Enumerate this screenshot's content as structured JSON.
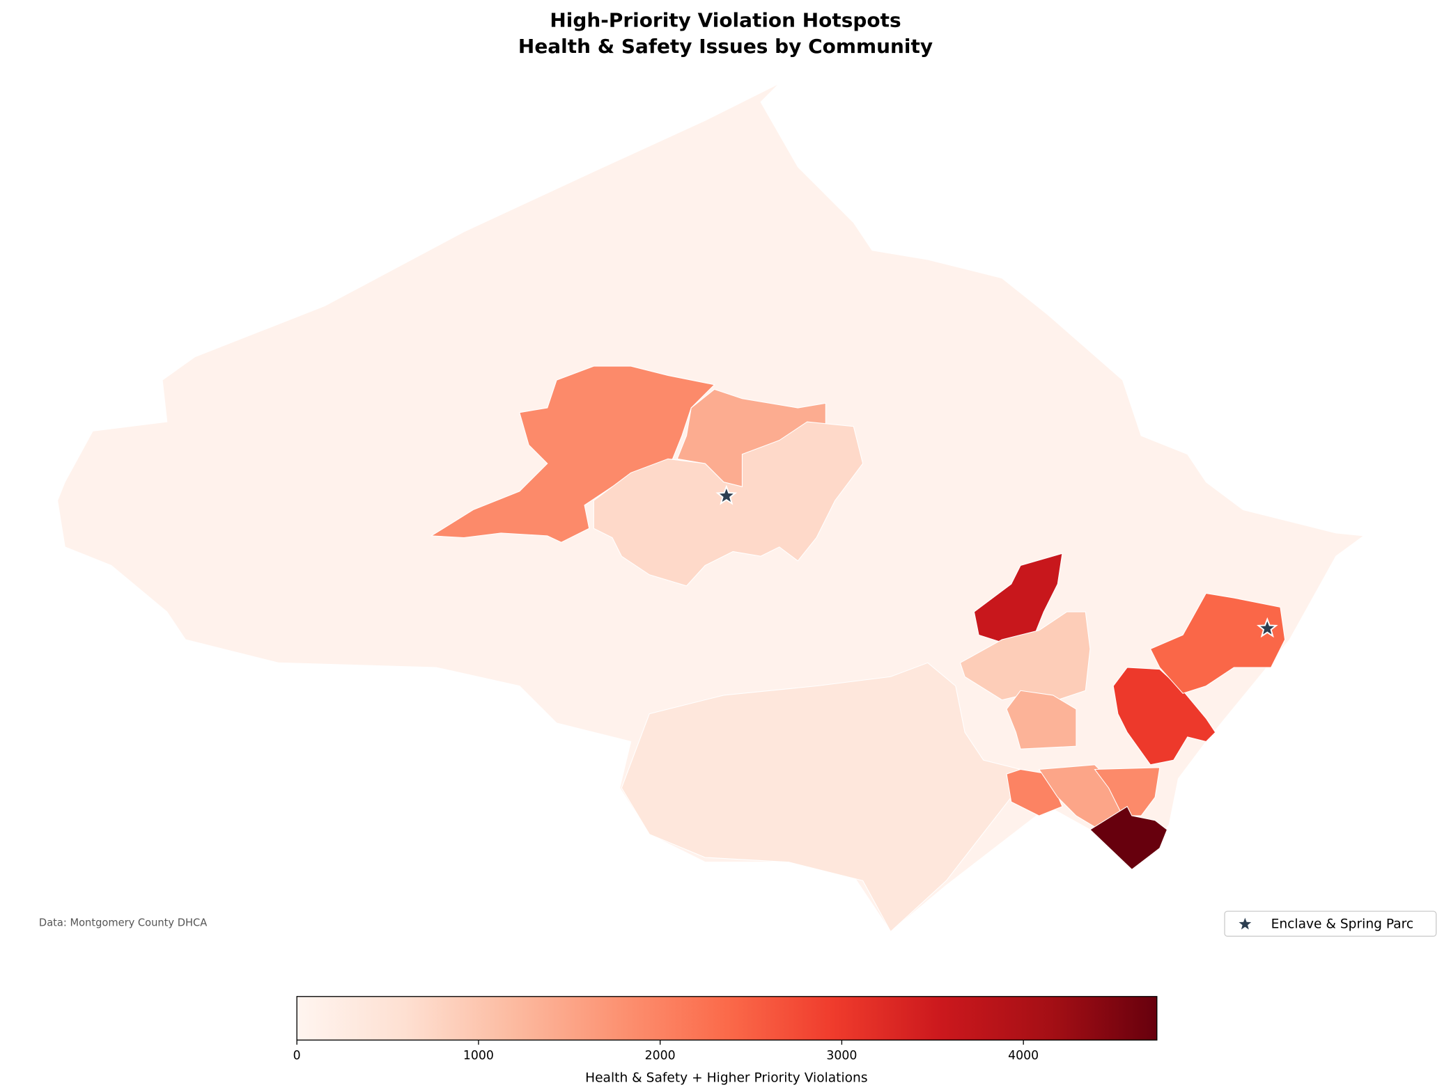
{
  "chart_data": {
    "type": "choropleth",
    "title": [
      "High-Priority Violation Hotspots",
      "Health & Safety Issues by Community"
    ],
    "values": [
      80,
      400,
      1900,
      1400,
      700,
      3600,
      900,
      1300,
      3000,
      2400,
      2000,
      1500,
      1900,
      4735
    ],
    "colormap": [
      "#fff5f0",
      "#fee0d2",
      "#fcbba1",
      "#fc9272",
      "#fb6a4a",
      "#ef3b2c",
      "#cb181d",
      "#a50f15",
      "#67000d"
    ],
    "clim": [
      0,
      4735
    ],
    "cticks": [
      0,
      1000,
      2000,
      3000,
      4000
    ],
    "colorbar_label": "Health & Safety + Higher Priority Violations",
    "marker_color": "#2c3e50",
    "legend": "Enclave & Spring Parc",
    "legend_position": "lower right",
    "source": "Data: Montgomery County DHCA"
  }
}
